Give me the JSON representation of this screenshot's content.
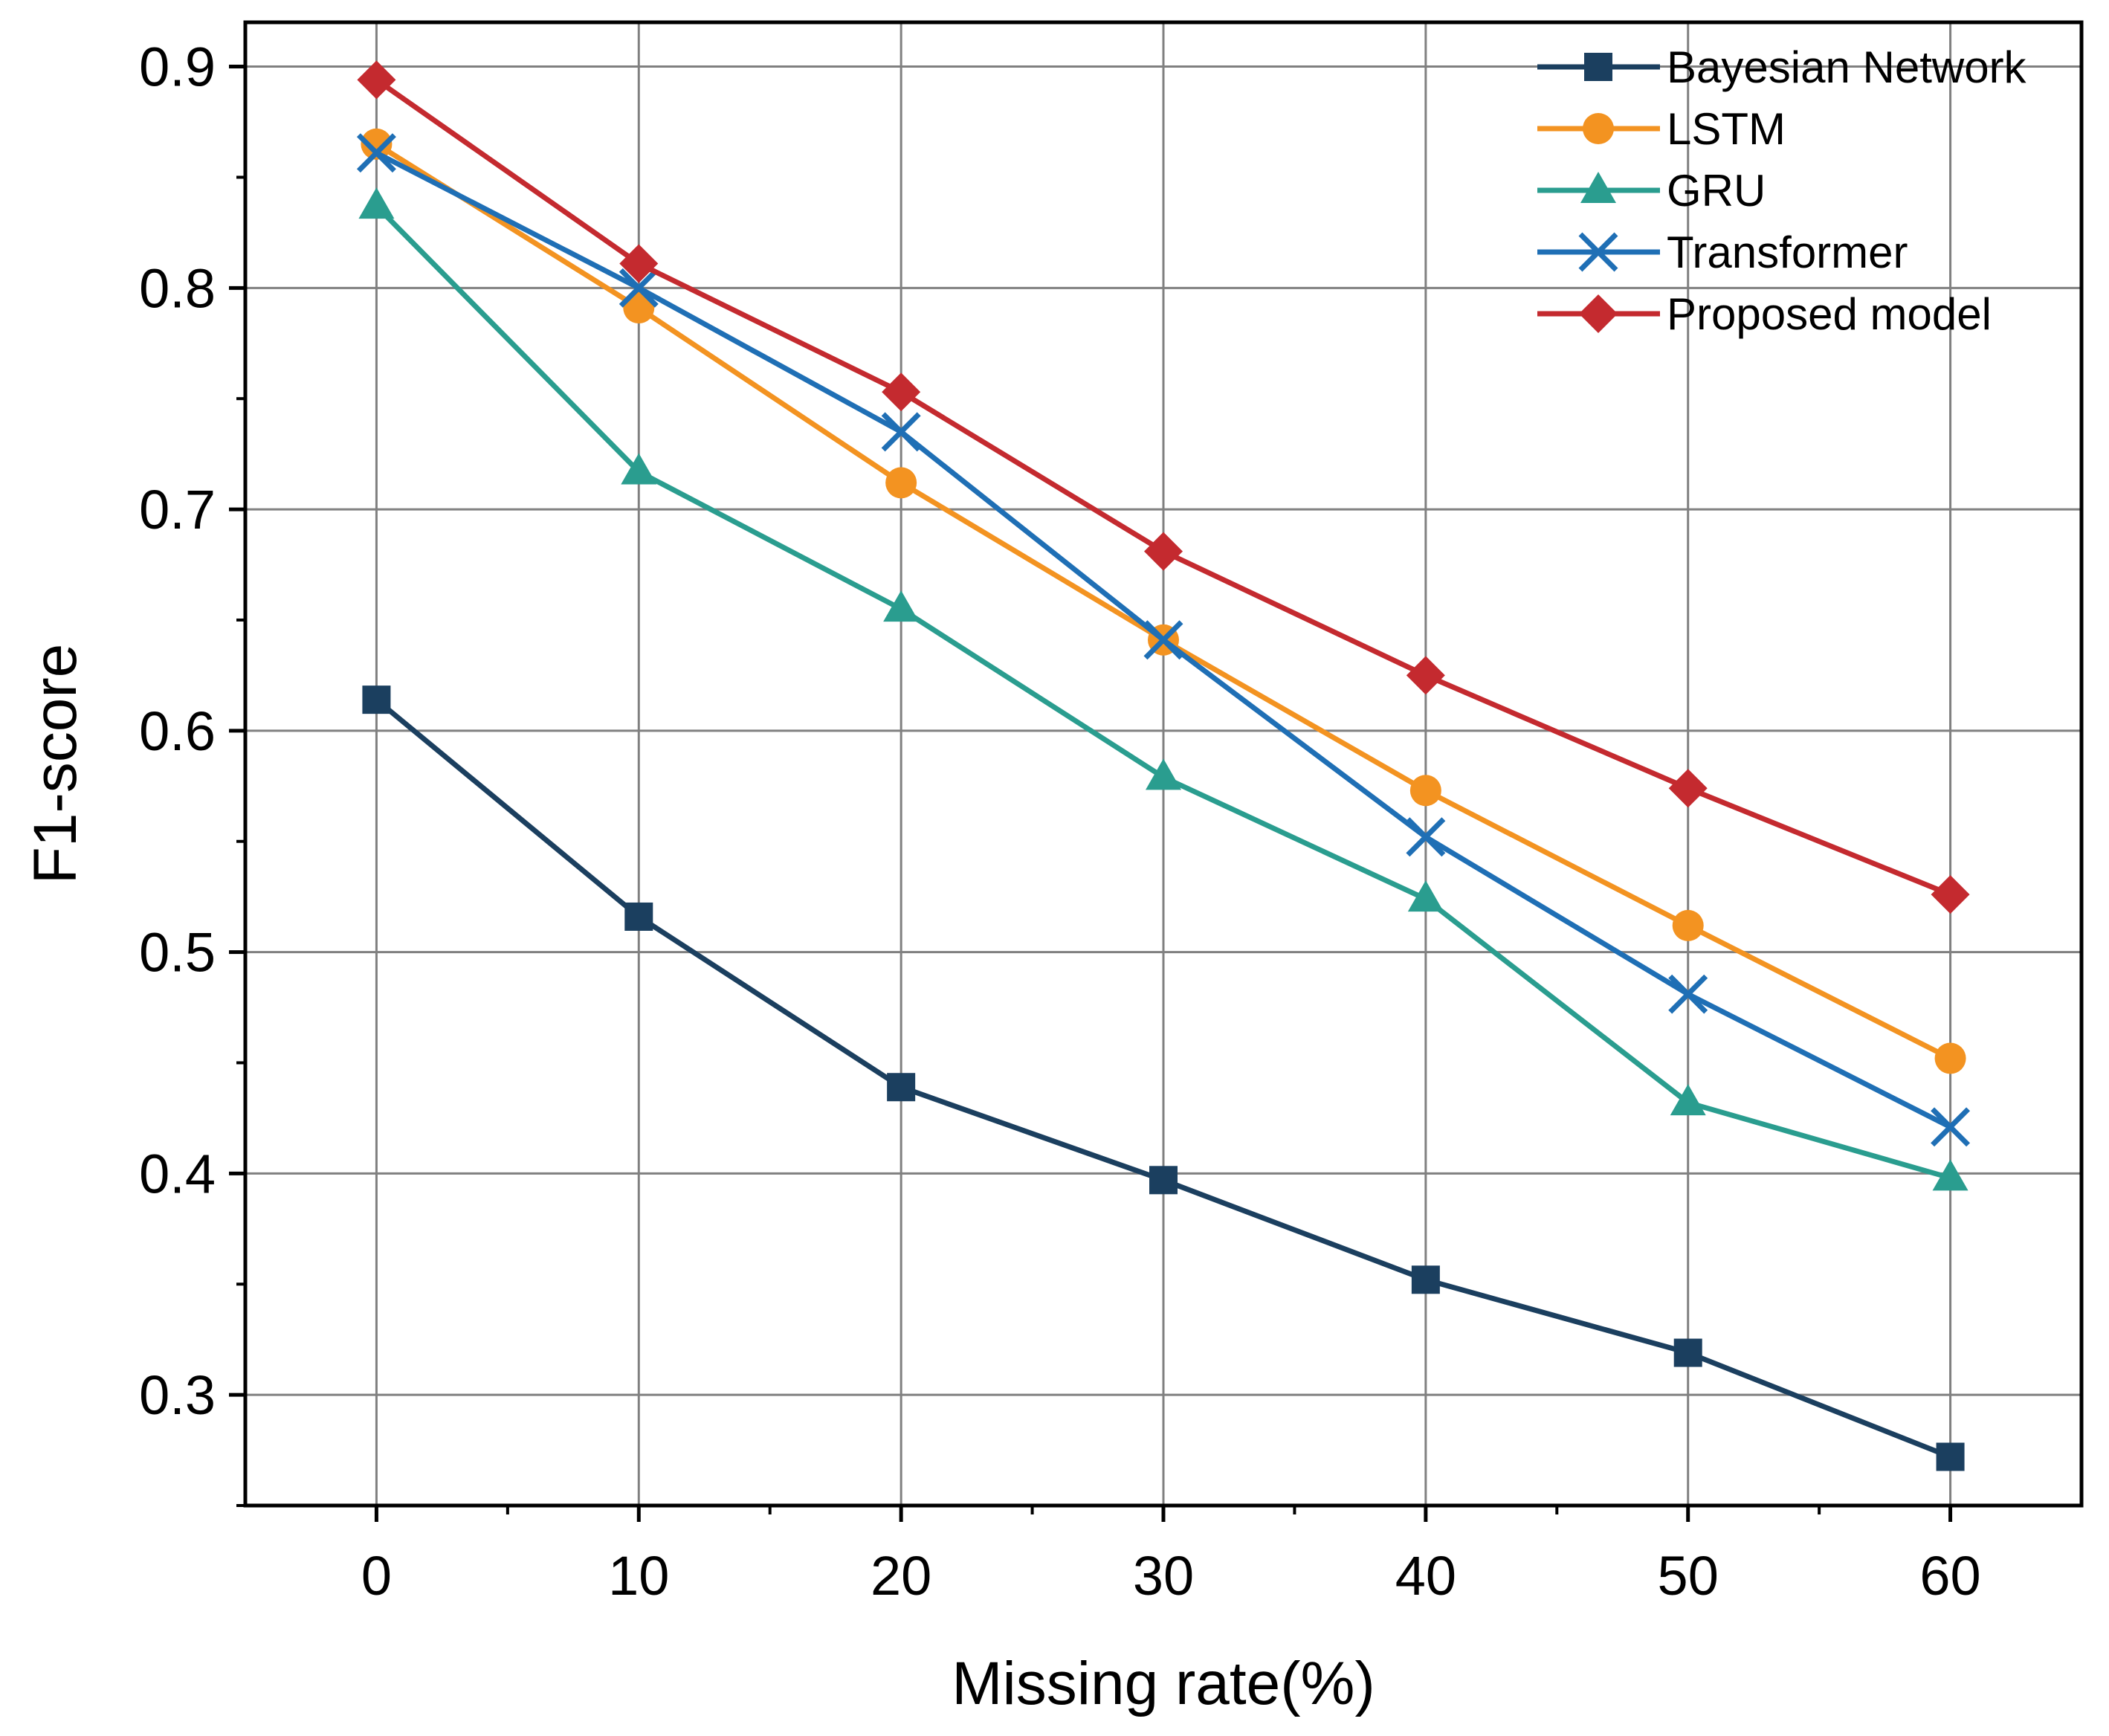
{
  "chart_data": {
    "type": "line",
    "title": "",
    "xlabel": "Missing rate(%)",
    "ylabel": "F1-score",
    "x": [
      0,
      10,
      20,
      30,
      40,
      50,
      60
    ],
    "x_tick_labels": [
      "0",
      "10",
      "20",
      "30",
      "40",
      "50",
      "60"
    ],
    "y_ticks": [
      0.3,
      0.4,
      0.5,
      0.6,
      0.7,
      0.8,
      0.9
    ],
    "y_tick_labels": [
      "0.3",
      "0.4",
      "0.5",
      "0.6",
      "0.7",
      "0.8",
      "0.9"
    ],
    "xlim": [
      -5,
      65
    ],
    "ylim": [
      0.25,
      0.92
    ],
    "grid": true,
    "legend_position": "top-right",
    "series": [
      {
        "name": "Bayesian Network",
        "color": "#1b3f5f",
        "marker": "square",
        "values": [
          0.614,
          0.516,
          0.439,
          0.397,
          0.352,
          0.319,
          0.272
        ]
      },
      {
        "name": "LSTM",
        "color": "#f39321",
        "marker": "circle",
        "values": [
          0.865,
          0.791,
          0.712,
          0.641,
          0.573,
          0.512,
          0.452
        ]
      },
      {
        "name": "GRU",
        "color": "#2a9d8f",
        "marker": "triangle",
        "values": [
          0.837,
          0.717,
          0.655,
          0.579,
          0.524,
          0.432,
          0.398
        ]
      },
      {
        "name": "Transformer",
        "color": "#1f6fb5",
        "marker": "x",
        "values": [
          0.861,
          0.8,
          0.735,
          0.641,
          0.552,
          0.481,
          0.421
        ]
      },
      {
        "name": "Proposed model",
        "color": "#c42a2f",
        "marker": "diamond",
        "values": [
          0.894,
          0.811,
          0.753,
          0.681,
          0.625,
          0.574,
          0.526
        ]
      }
    ]
  }
}
